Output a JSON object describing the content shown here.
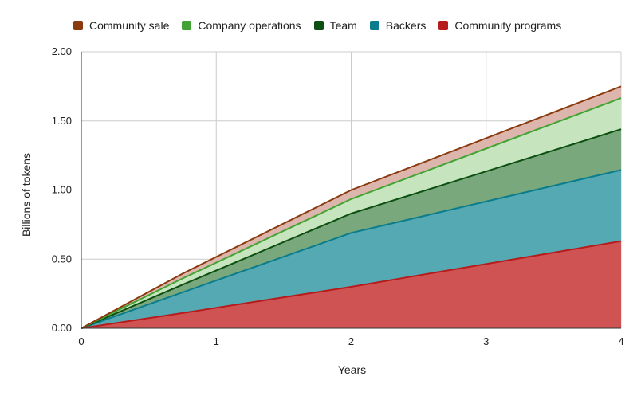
{
  "chart_data": {
    "type": "area",
    "stacked": true,
    "title": "",
    "xlabel": "Years",
    "ylabel": "Billions of tokens",
    "x": [
      0,
      0.75,
      2,
      4
    ],
    "xlim": [
      0,
      4
    ],
    "ylim": [
      0,
      2
    ],
    "x_ticks": [
      "0",
      "1",
      "2",
      "3",
      "4"
    ],
    "y_ticks": [
      "0.00",
      "0.50",
      "1.00",
      "1.50",
      "2.00"
    ],
    "grid": true,
    "legend_position": "top-left",
    "series": [
      {
        "name": "Community programs",
        "color": "#b71c1c",
        "fill": "#d05353",
        "values": [
          0,
          0.11,
          0.3,
          0.63
        ]
      },
      {
        "name": "Backers",
        "color": "#0b7c8c",
        "fill": "#55a9b3",
        "values": [
          0,
          0.15,
          0.39,
          0.515
        ]
      },
      {
        "name": "Team",
        "color": "#0d4f11",
        "fill": "#7aa87d",
        "values": [
          0,
          0.055,
          0.14,
          0.295
        ]
      },
      {
        "name": "Company operations",
        "color": "#43a335",
        "fill": "#c6e5bf",
        "values": [
          0,
          0.045,
          0.105,
          0.225
        ]
      },
      {
        "name": "Community sale",
        "color": "#8b3a0f",
        "fill": "#dcb6ac",
        "values": [
          0,
          0.035,
          0.065,
          0.085
        ]
      }
    ],
    "legend_order": [
      "Community sale",
      "Company operations",
      "Team",
      "Backers",
      "Community programs"
    ]
  }
}
